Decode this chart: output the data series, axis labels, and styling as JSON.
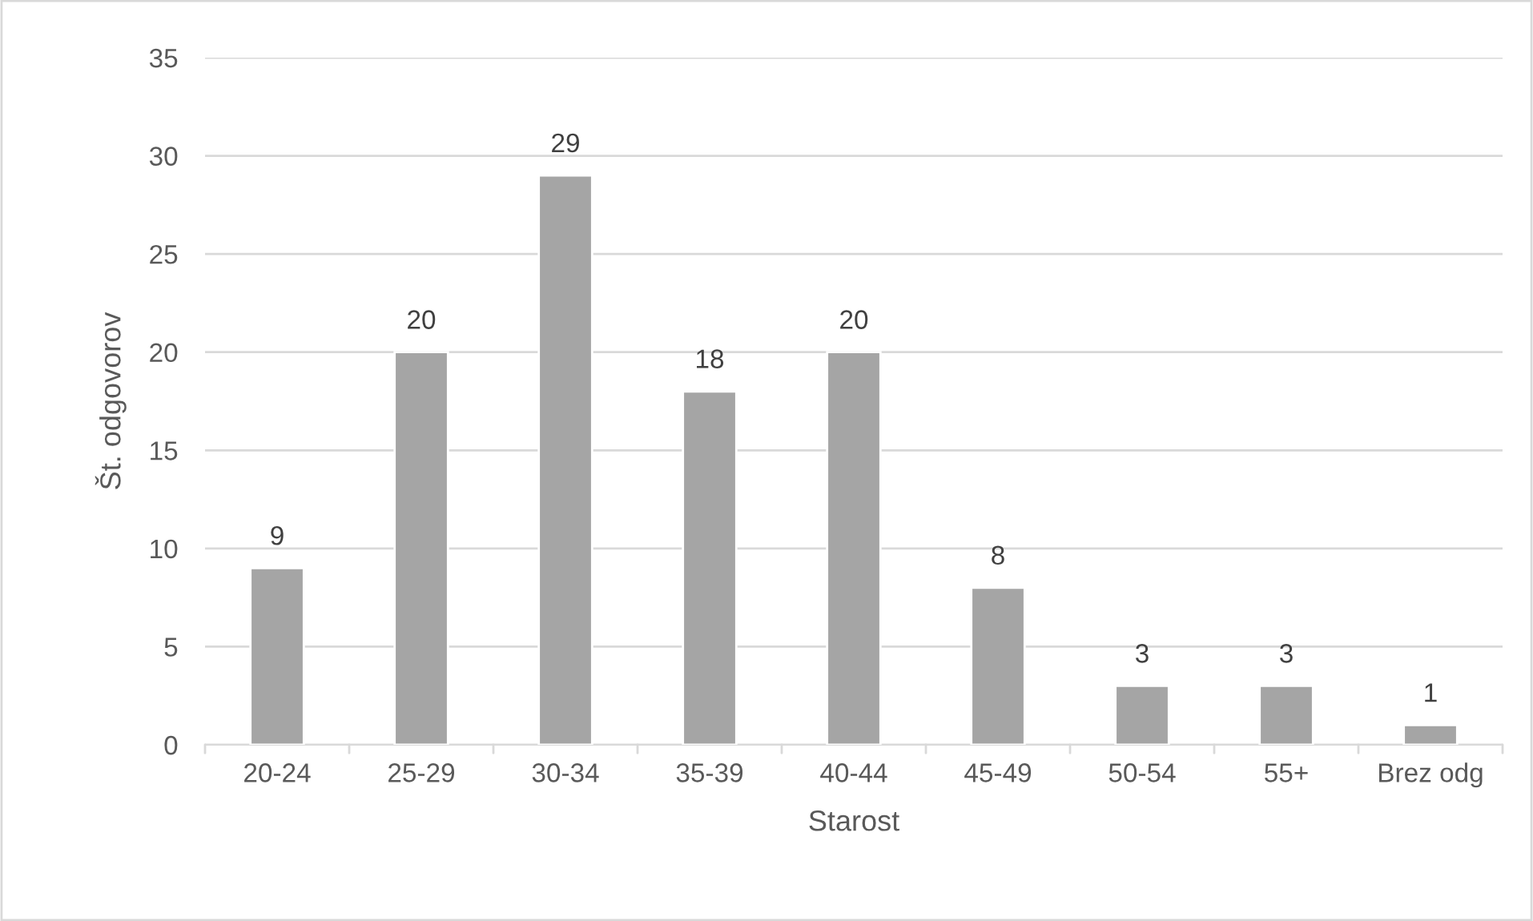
{
  "chart_data": {
    "type": "bar",
    "xlabel": "Starost",
    "ylabel": "Št. odgovorov",
    "categories": [
      "20-24",
      "25-29",
      "30-34",
      "35-39",
      "40-44",
      "45-49",
      "50-54",
      "55+",
      "Brez odg"
    ],
    "values": [
      9,
      20,
      29,
      18,
      20,
      8,
      3,
      3,
      1
    ],
    "color": "#a5a5a5",
    "ylim": [
      0,
      35
    ],
    "yticks": [
      0,
      5,
      10,
      15,
      20,
      25,
      30,
      35
    ],
    "grid": "y",
    "data_labels": true
  }
}
